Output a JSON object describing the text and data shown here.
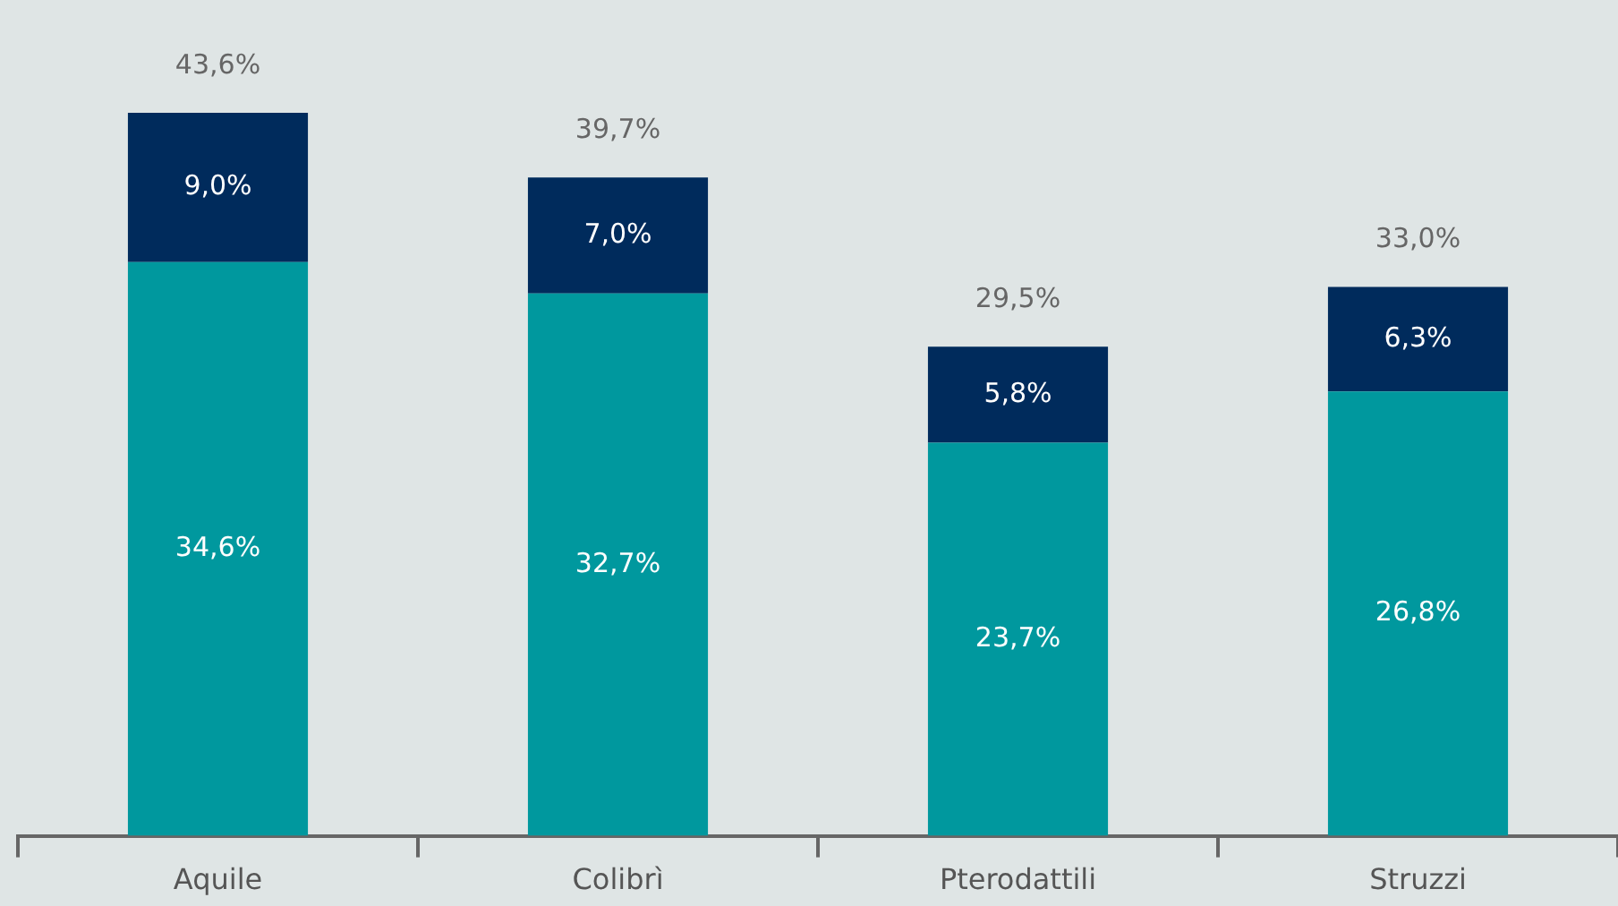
{
  "chart_data": {
    "type": "bar",
    "stacked": true,
    "categories": [
      "Aquile",
      "Colibrì",
      "Pterodattili",
      "Struzzi"
    ],
    "series": [
      {
        "color": "#00989e",
        "values": [
          34.6,
          32.7,
          23.7,
          26.8
        ],
        "value_labels": [
          "34,6%",
          "32,7%",
          "23,7%",
          "26,8%"
        ]
      },
      {
        "color": "#002b5c",
        "values": [
          9.0,
          7.0,
          5.8,
          6.3
        ],
        "value_labels": [
          "9,0%",
          "7,0%",
          "5,8%",
          "6,3%"
        ]
      }
    ],
    "totals": [
      "43,6%",
      "39,7%",
      "29,5%",
      "33,0%"
    ],
    "grid": false,
    "legend": false
  }
}
